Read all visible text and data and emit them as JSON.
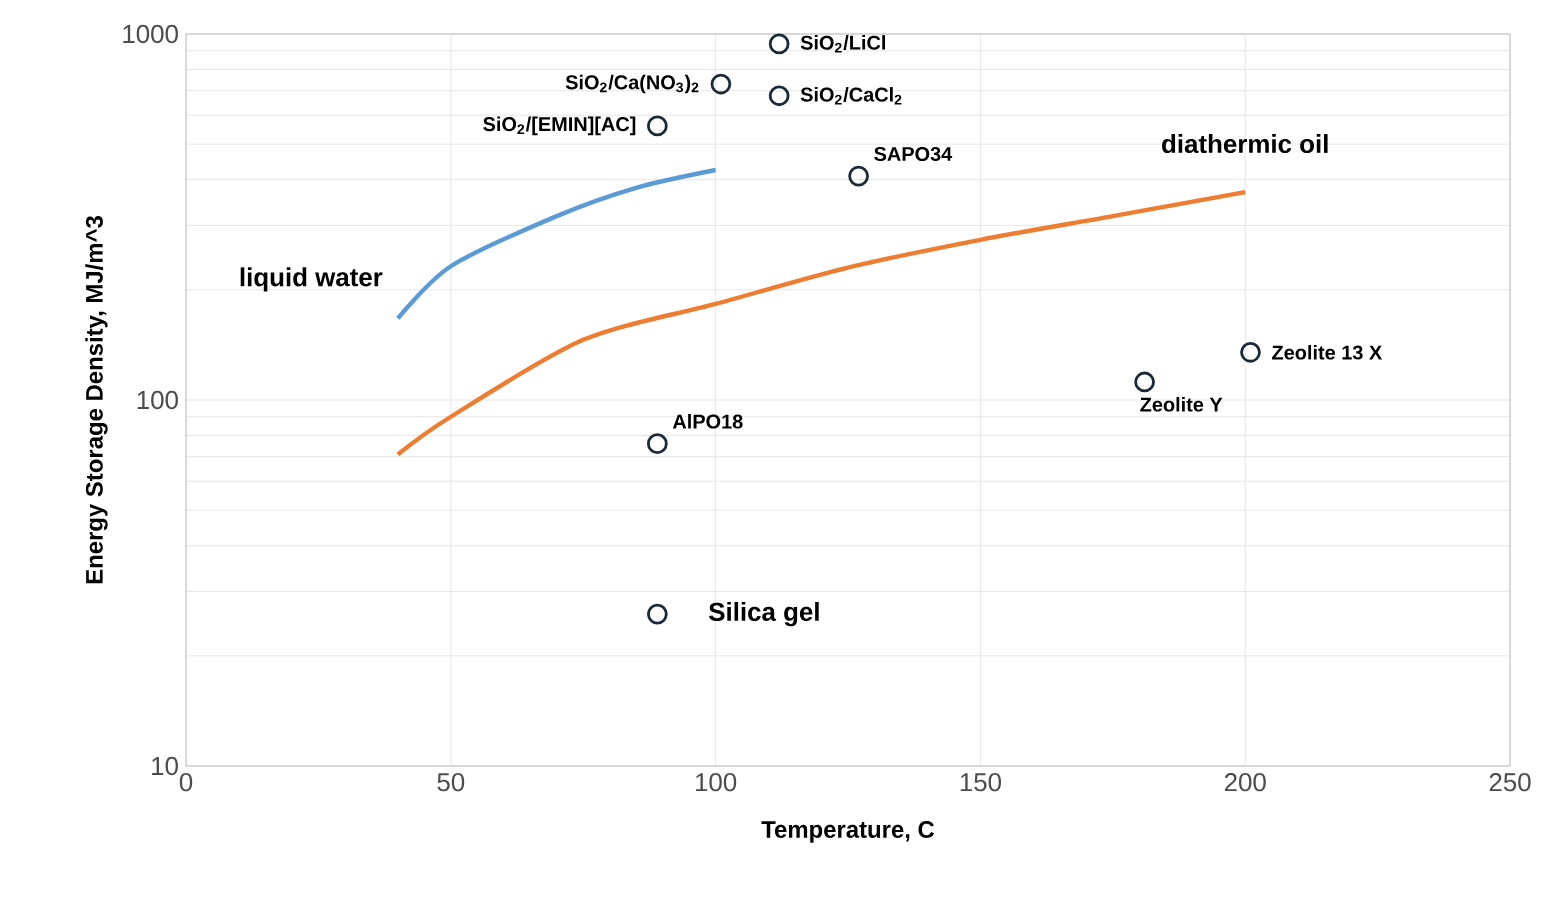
{
  "chart_data": {
    "type": "scatter",
    "xlabel": "Temperature, C",
    "ylabel": "Energy Storage Density, MJ/m^3",
    "log": "y",
    "grid": true,
    "xlim": [
      0,
      250
    ],
    "xticks": [
      0,
      50,
      100,
      150,
      200,
      250
    ],
    "ylim": [
      10,
      1000
    ],
    "yticks": [
      10,
      100,
      1000
    ],
    "series": [
      {
        "name": "liquid water",
        "type": "line",
        "color": "#5b9bd5",
        "x": [
          40,
          50,
          70,
          85,
          100
        ],
        "values": [
          167,
          232,
          318,
          380,
          425
        ]
      },
      {
        "name": "diathermic oil",
        "type": "line",
        "color": "#ed7d31",
        "x": [
          40,
          50,
          75,
          100,
          125,
          150,
          175,
          200
        ],
        "values": [
          71,
          90,
          146,
          183,
          230,
          274,
          318,
          370
        ]
      },
      {
        "type": "scatter",
        "marker": "circle",
        "color": "#1a2a3a",
        "x": [
          112,
          101,
          112,
          89,
          127,
          201,
          181,
          89,
          89
        ],
        "values": [
          940,
          730,
          678,
          561,
          409,
          135,
          112,
          76,
          26
        ]
      }
    ],
    "annotations": [
      {
        "text": "SiO$_{2}$/LiCl",
        "x": 112,
        "y": 940
      },
      {
        "text": "SiO$_{2}$/Ca(NO$_{3}$)$_{2}$",
        "x": 101,
        "y": 730
      },
      {
        "text": "SiO$_{2}$/CaCl$_{2}$",
        "x": 112,
        "y": 678
      },
      {
        "text": "SiO$_{2}$/[EMIN][AC]",
        "x": 89,
        "y": 561
      },
      {
        "text": "SAPO34",
        "x": 127,
        "y": 409
      },
      {
        "text": "Zeolite 13 X",
        "x": 201,
        "y": 135
      },
      {
        "text": "Zeolite Y",
        "x": 181,
        "y": 112
      },
      {
        "text": "AlPO18",
        "x": 89,
        "y": 76
      },
      {
        "text": "Silica gel",
        "x": 89,
        "y": 26
      }
    ]
  }
}
